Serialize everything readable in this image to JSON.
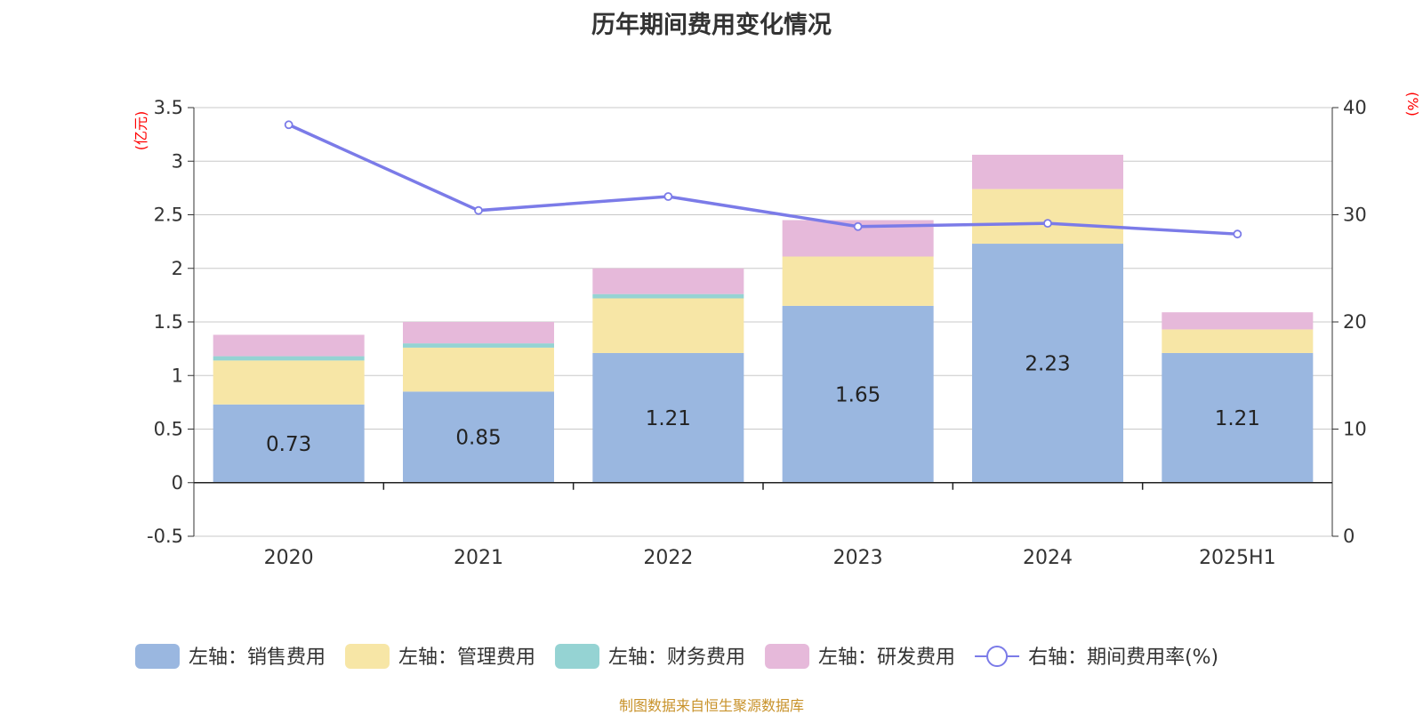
{
  "title": "历年期间费用变化情况",
  "source_note": "制图数据来自恒生聚源数据库",
  "colors": {
    "sales": "#9ab7e0",
    "admin": "#f7e6a6",
    "finance": "#95d3d3",
    "rd": "#e6b9da",
    "rate_line": "#7b7be8",
    "axis_unit": "#ff0000",
    "axis_text": "#333333",
    "grid": "#c8c8c8"
  },
  "chart_data": {
    "type": "bar",
    "stacked": true,
    "categories": [
      "2020",
      "2021",
      "2022",
      "2023",
      "2024",
      "2025H1"
    ],
    "left_axis": {
      "unit_label": "(亿元)",
      "range": [
        -0.5,
        3.5
      ],
      "ticks": [
        "-0.5",
        "0",
        "0.5",
        "1",
        "1.5",
        "2",
        "2.5",
        "3",
        "3.5"
      ]
    },
    "right_axis": {
      "unit_label": "(%)",
      "range": [
        0,
        40
      ],
      "ticks": [
        "0",
        "10",
        "20",
        "30",
        "40"
      ]
    },
    "grid": true,
    "legend_position": "bottom",
    "series": [
      {
        "key": "sales",
        "name": "左轴：销售费用",
        "axis": "left",
        "type": "bar",
        "values": [
          0.73,
          0.85,
          1.21,
          1.65,
          2.23,
          1.21
        ],
        "data_labels": [
          "0.73",
          "0.85",
          "1.21",
          "1.65",
          "2.23",
          "1.21"
        ]
      },
      {
        "key": "admin",
        "name": "左轴：管理费用",
        "axis": "left",
        "type": "bar",
        "values": [
          0.41,
          0.41,
          0.51,
          0.46,
          0.51,
          0.22
        ]
      },
      {
        "key": "finance",
        "name": "左轴：财务费用",
        "axis": "left",
        "type": "bar",
        "values": [
          0.04,
          0.04,
          0.04,
          0.0,
          0.0,
          0.0
        ]
      },
      {
        "key": "rd",
        "name": "左轴：研发费用",
        "axis": "left",
        "type": "bar",
        "values": [
          0.2,
          0.2,
          0.24,
          0.34,
          0.32,
          0.16
        ]
      },
      {
        "key": "rate_line",
        "name": "右轴：期间费用率(%)",
        "axis": "right",
        "type": "line",
        "values": [
          38.4,
          30.4,
          31.7,
          28.9,
          29.2,
          28.2
        ]
      }
    ]
  }
}
